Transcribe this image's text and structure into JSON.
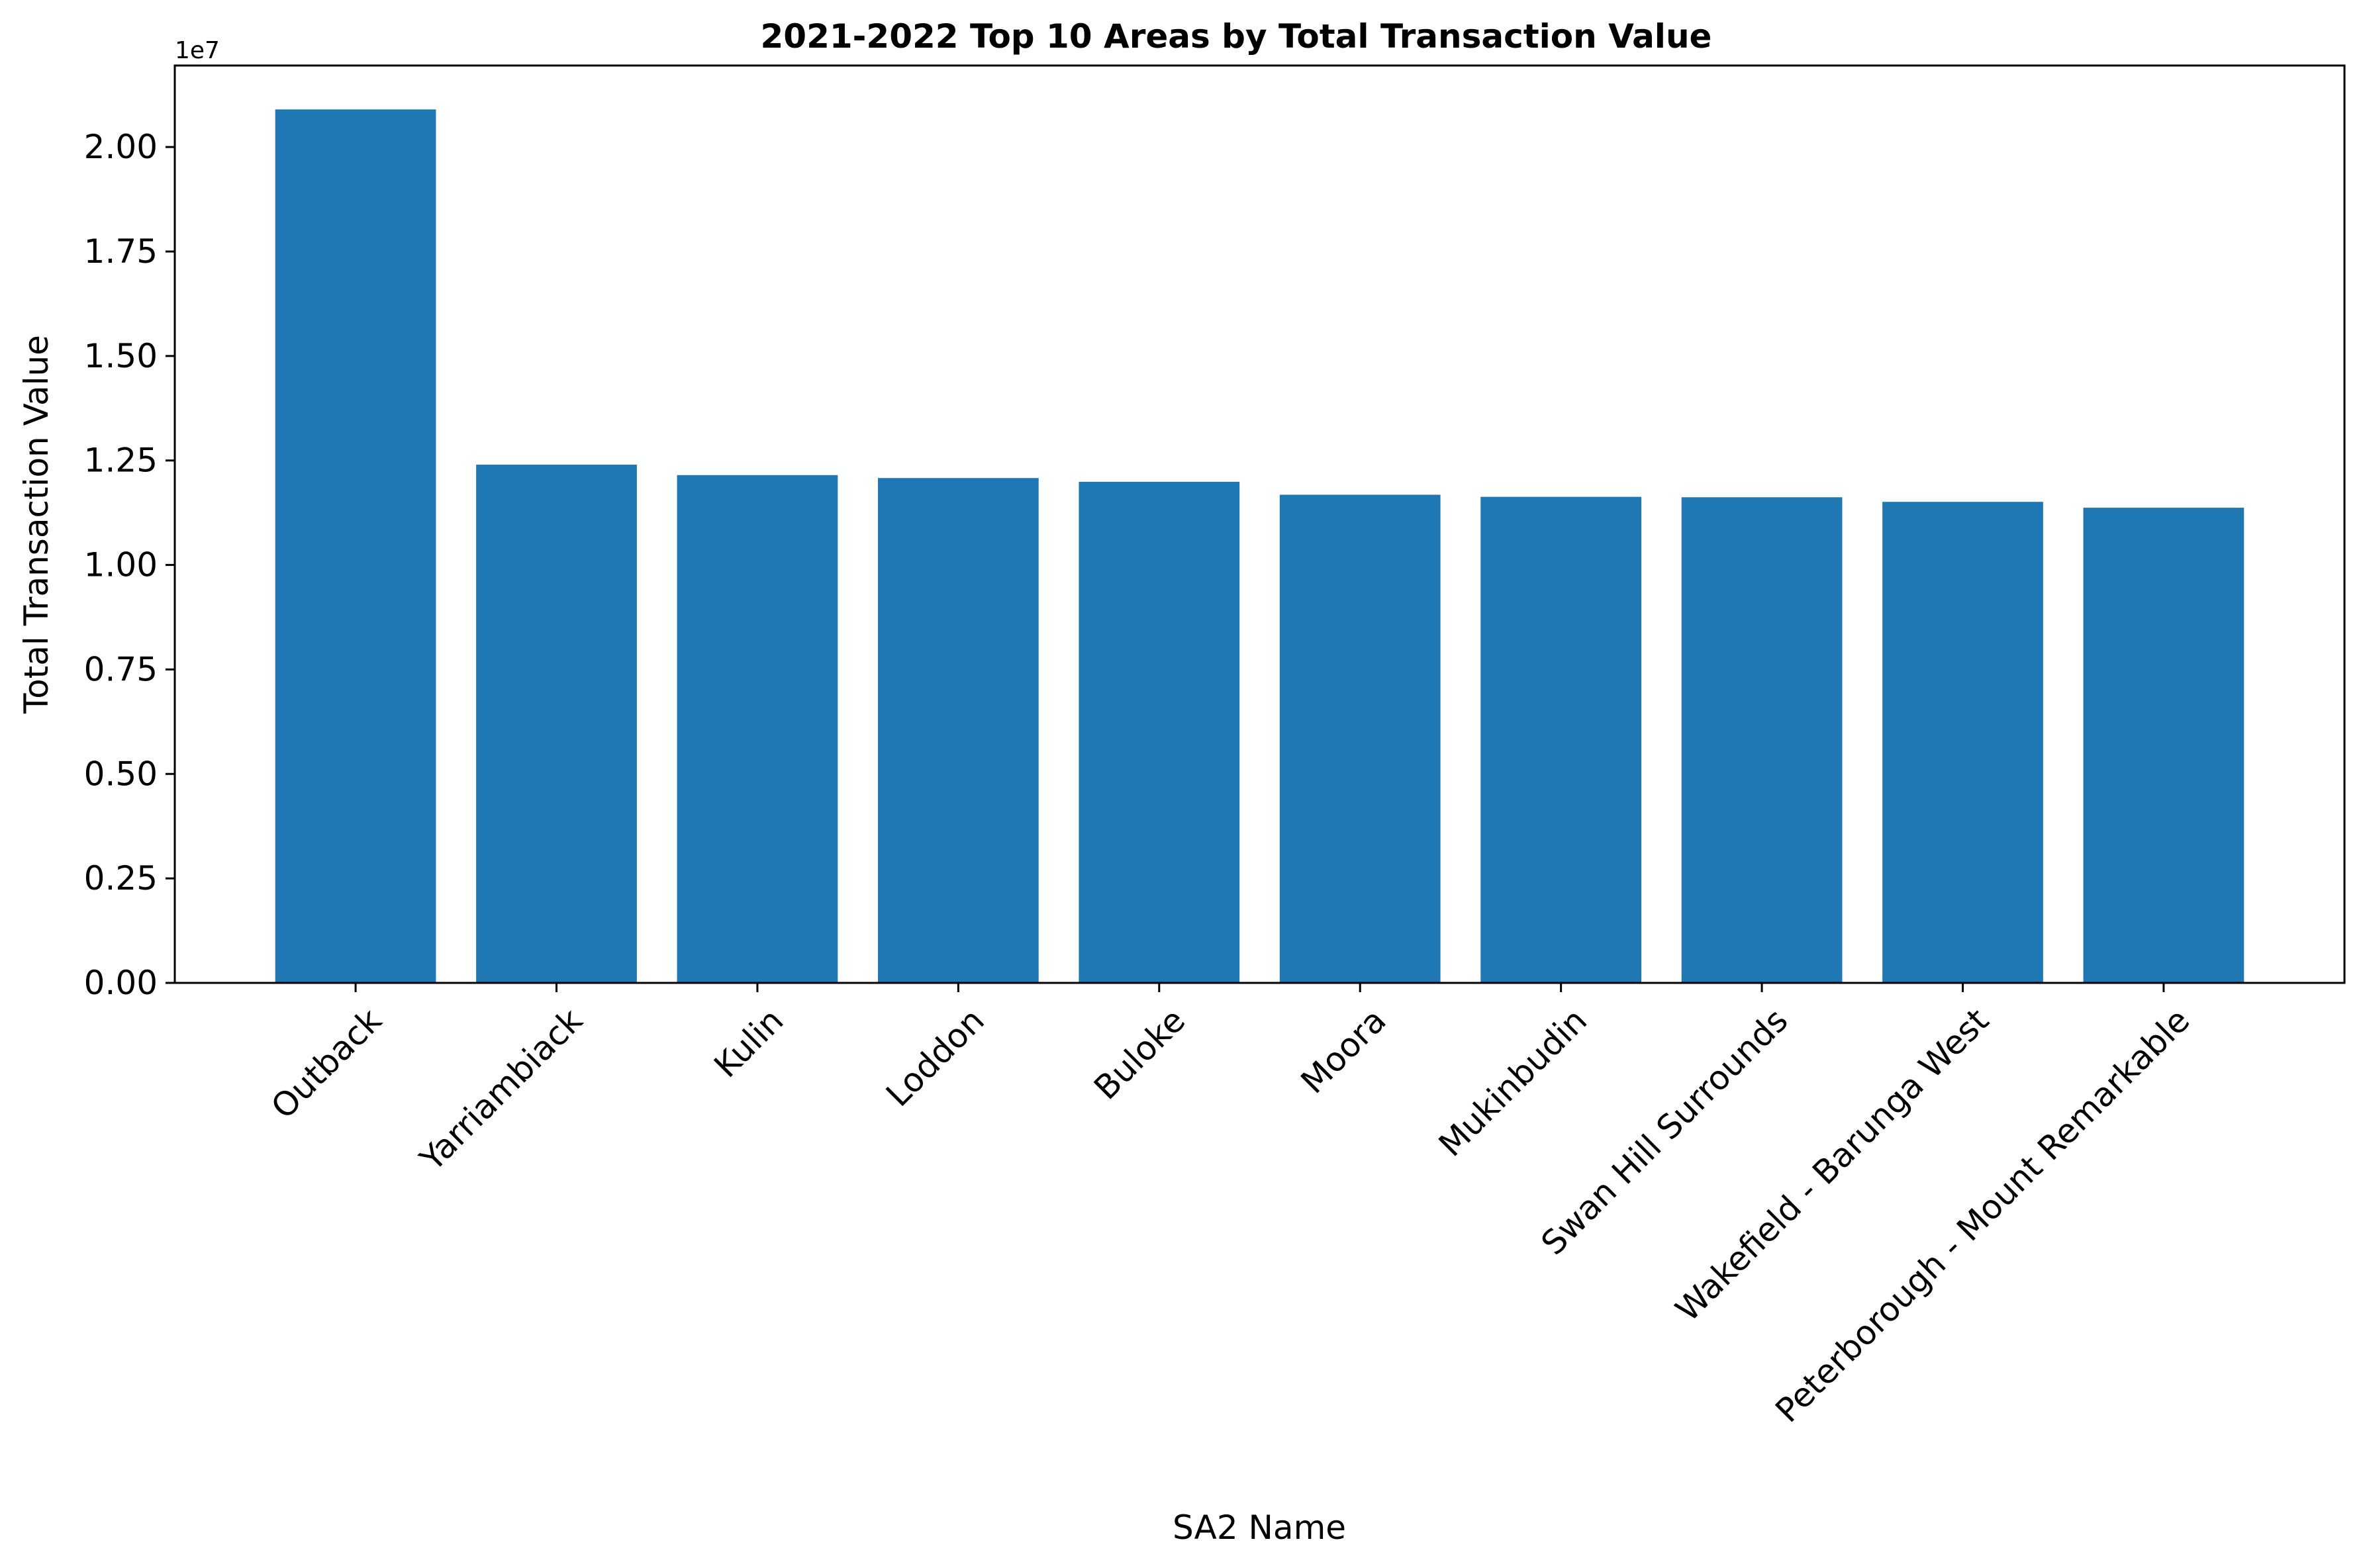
{
  "chart_data": {
    "type": "bar",
    "title": "2021-2022 Top 10 Areas by Total Transaction Value",
    "xlabel": "SA2 Name",
    "ylabel": "Total Transaction Value",
    "y_offset_label": "1e7",
    "categories": [
      "Outback",
      "Yarriambiack",
      "Kulin",
      "Loddon",
      "Buloke",
      "Moora",
      "Mukinbudin",
      "Swan Hill Surrounds",
      "Wakefield - Barunga West",
      "Peterborough - Mount Remarkable"
    ],
    "values": [
      20900000,
      12400000,
      12150000,
      12080000,
      11990000,
      11680000,
      11630000,
      11620000,
      11510000,
      11370000
    ],
    "ylim": [
      0,
      21950000
    ],
    "yticks": [
      0,
      2500000,
      5000000,
      7500000,
      10000000,
      12500000,
      15000000,
      17500000,
      20000000
    ],
    "ytick_labels": [
      "0.00",
      "0.25",
      "0.50",
      "0.75",
      "1.00",
      "1.25",
      "1.50",
      "1.75",
      "2.00"
    ],
    "bar_color": "#1f77b4",
    "grid": false,
    "legend": "none"
  }
}
